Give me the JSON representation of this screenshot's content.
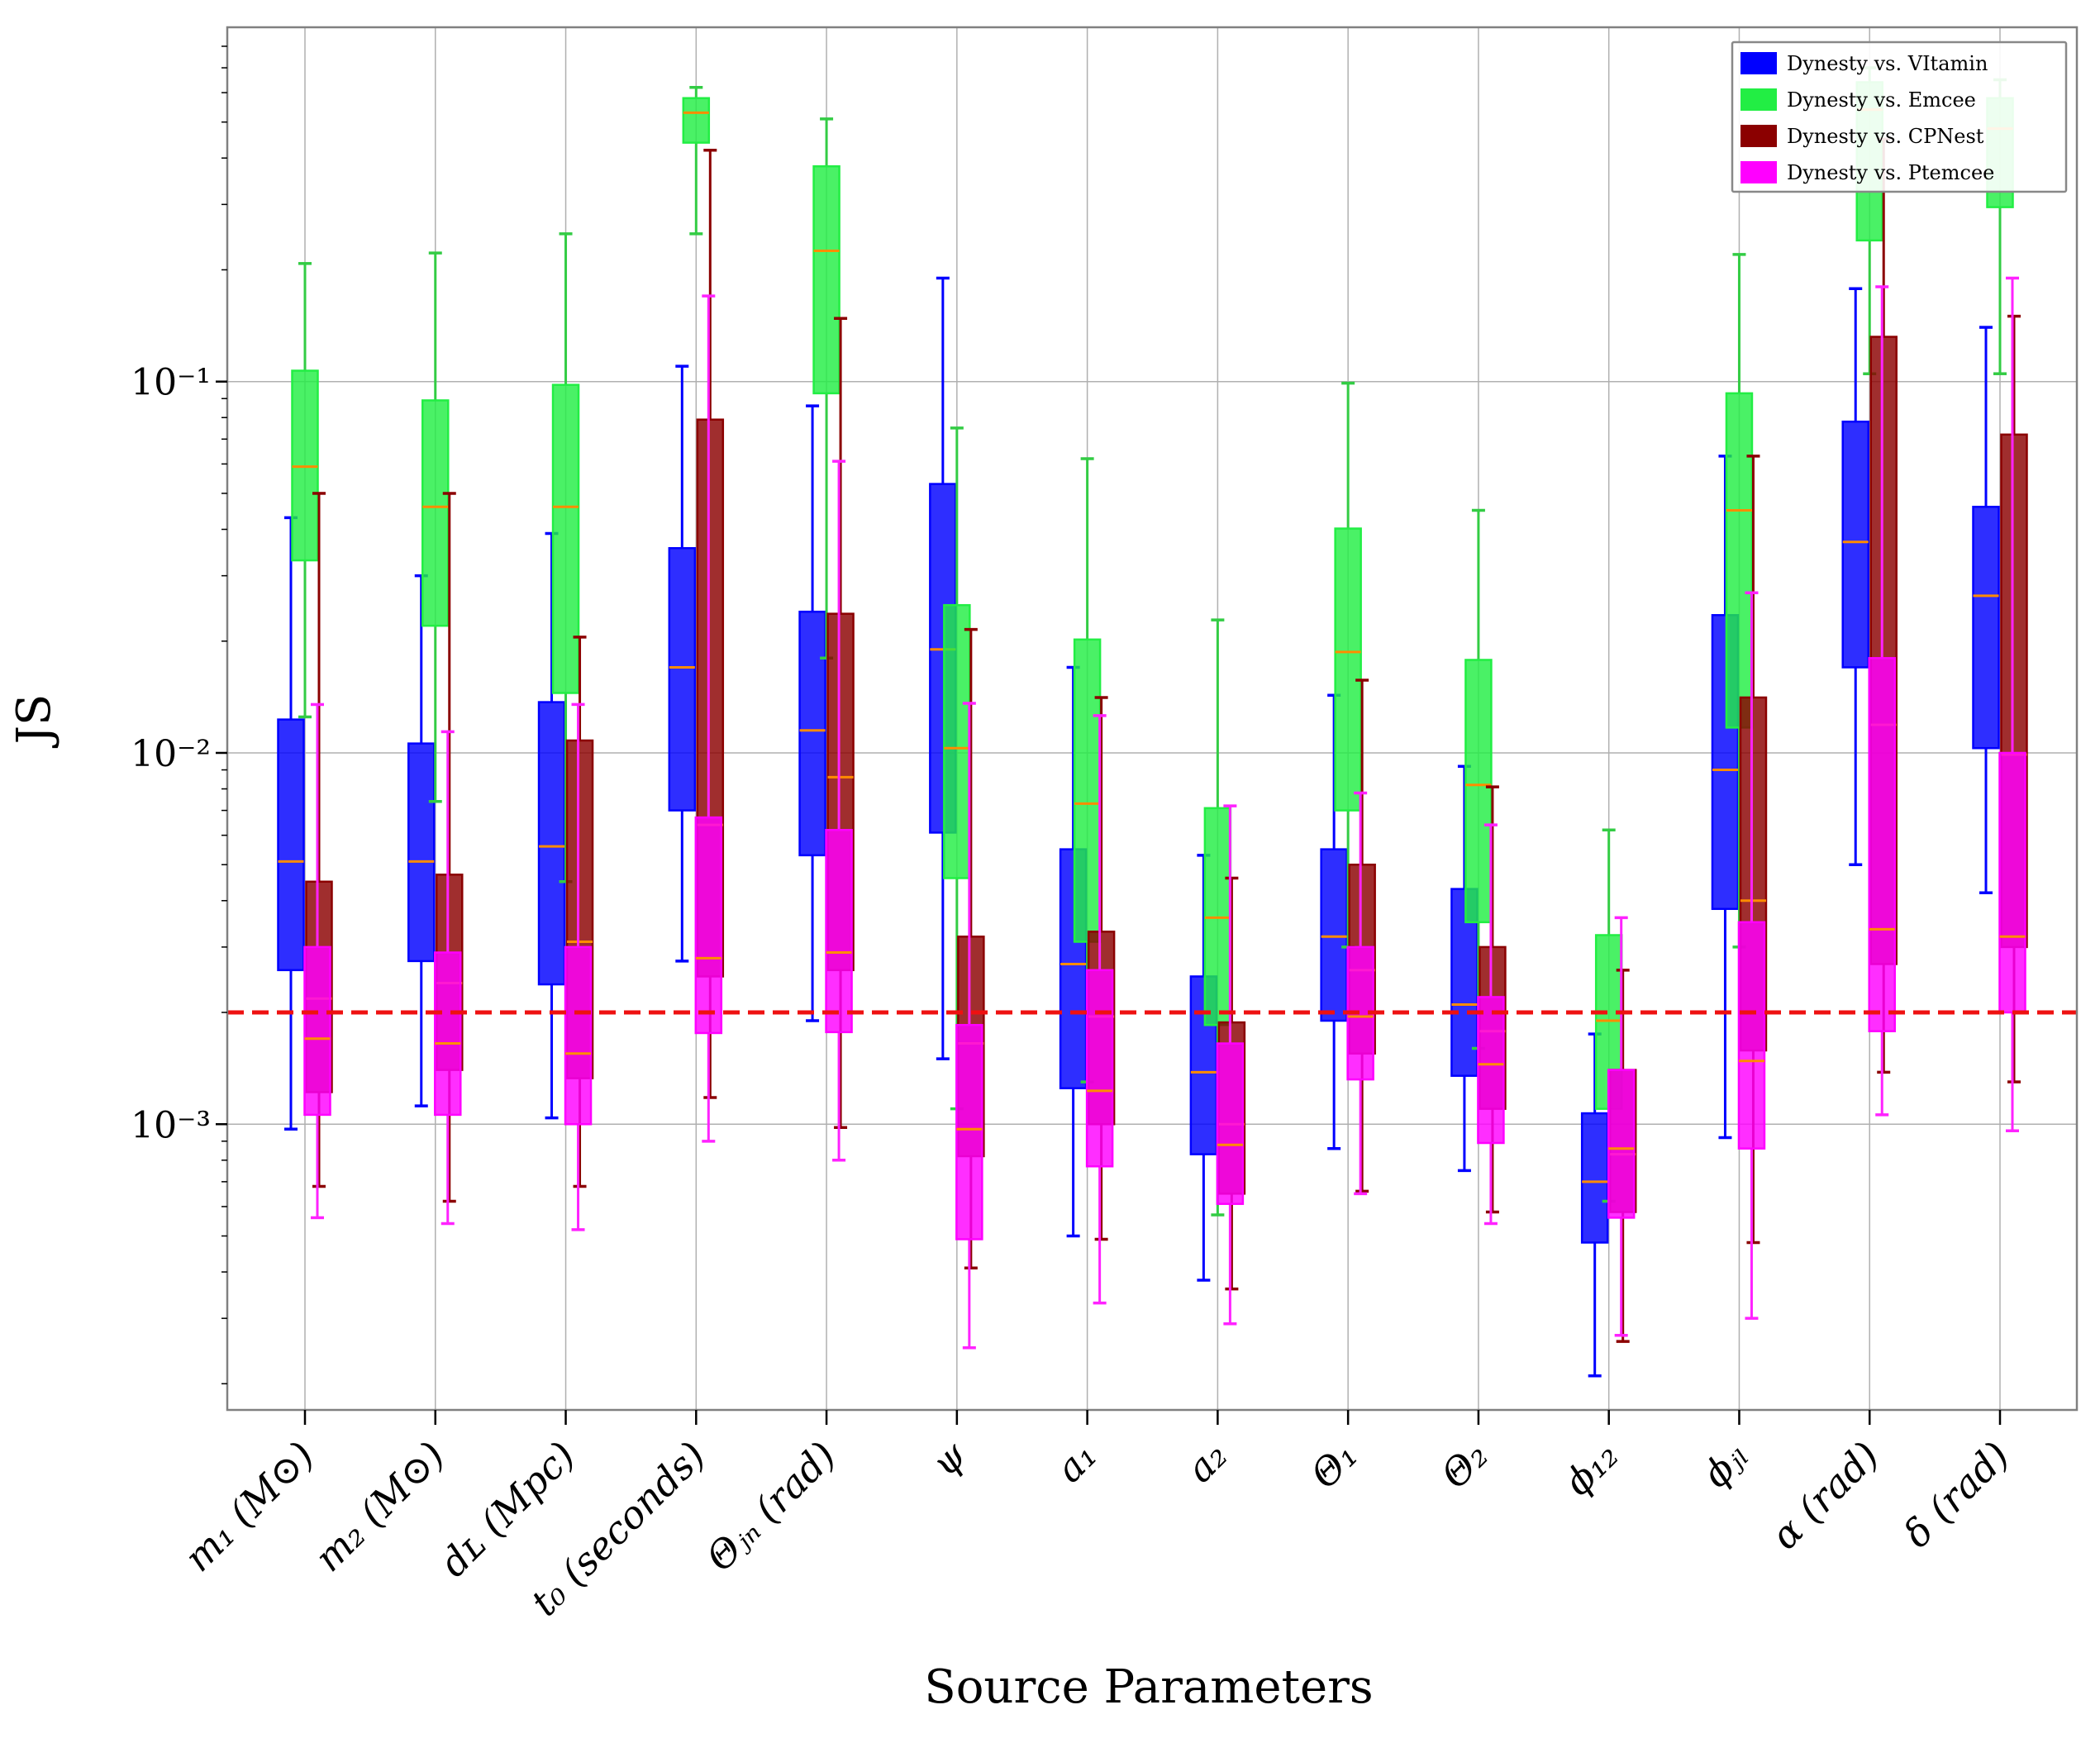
{
  "chart_data": {
    "type": "boxplot",
    "title": "",
    "xlabel": "Source Parameters",
    "ylabel": "JS",
    "yscale": "log",
    "ylim": [
      0.00017,
      0.9
    ],
    "ytick_values": [
      0.001,
      0.01,
      0.1
    ],
    "ytick_labels": [
      "10⁻³",
      "10⁻²",
      "10⁻¹"
    ],
    "grid": true,
    "legend_position": "top-right",
    "threshold": {
      "value": 0.002,
      "color": "#ee1111",
      "style": "dashed"
    },
    "categories": [
      "m₁ (M⊙)",
      "m₂ (M⊙)",
      "dʟ (Mpc)",
      "t₀ (seconds)",
      "Θⱼₙ (rad)",
      "ψ",
      "a₁",
      "a₂",
      "Θ₁",
      "Θ₂",
      "ϕ₁₂",
      "ϕⱼₗ",
      "α (rad)",
      "δ (rad)"
    ],
    "median_color": "#ff8c00",
    "series": [
      {
        "name": "Dynesty vs. VItamin",
        "color": "#0000ff",
        "whisker_color": "#0000ff",
        "boxes": [
          {
            "whislo": 0.00097,
            "q1": 0.0026,
            "med": 0.0051,
            "q3": 0.0123,
            "whishi": 0.043
          },
          {
            "whislo": 0.00112,
            "q1": 0.00275,
            "med": 0.0051,
            "q3": 0.0106,
            "whishi": 0.03
          },
          {
            "whislo": 0.00104,
            "q1": 0.00238,
            "med": 0.0056,
            "q3": 0.0137,
            "whishi": 0.039
          },
          {
            "whislo": 0.00275,
            "q1": 0.007,
            "med": 0.017,
            "q3": 0.0356,
            "whishi": 0.11
          },
          {
            "whislo": 0.0019,
            "q1": 0.0053,
            "med": 0.0115,
            "q3": 0.024,
            "whishi": 0.086
          },
          {
            "whislo": 0.0015,
            "q1": 0.0061,
            "med": 0.019,
            "q3": 0.053,
            "whishi": 0.19
          },
          {
            "whislo": 0.0005,
            "q1": 0.00125,
            "med": 0.0027,
            "q3": 0.0055,
            "whishi": 0.017
          },
          {
            "whislo": 0.00038,
            "q1": 0.00083,
            "med": 0.00138,
            "q3": 0.0025,
            "whishi": 0.0053
          },
          {
            "whislo": 0.00086,
            "q1": 0.0019,
            "med": 0.0032,
            "q3": 0.0055,
            "whishi": 0.0143
          },
          {
            "whislo": 0.00075,
            "q1": 0.00135,
            "med": 0.0021,
            "q3": 0.0043,
            "whishi": 0.0092
          },
          {
            "whislo": 0.00021,
            "q1": 0.00048,
            "med": 0.0007,
            "q3": 0.00107,
            "whishi": 0.00175
          },
          {
            "whislo": 0.00092,
            "q1": 0.0038,
            "med": 0.009,
            "q3": 0.0235,
            "whishi": 0.063
          },
          {
            "whislo": 0.005,
            "q1": 0.017,
            "med": 0.037,
            "q3": 0.078,
            "whishi": 0.178
          },
          {
            "whislo": 0.0042,
            "q1": 0.0103,
            "med": 0.0265,
            "q3": 0.046,
            "whishi": 0.14
          }
        ]
      },
      {
        "name": "Dynesty vs. Emcee",
        "color": "#22ee44",
        "whisker_color": "#33cc44",
        "boxes": [
          {
            "whislo": 0.0125,
            "q1": 0.033,
            "med": 0.059,
            "q3": 0.107,
            "whishi": 0.208
          },
          {
            "whislo": 0.0074,
            "q1": 0.022,
            "med": 0.046,
            "q3": 0.089,
            "whishi": 0.222
          },
          {
            "whislo": 0.0045,
            "q1": 0.0145,
            "med": 0.046,
            "q3": 0.098,
            "whishi": 0.25
          },
          {
            "whislo": 0.25,
            "q1": 0.44,
            "med": 0.53,
            "q3": 0.58,
            "whishi": 0.62
          },
          {
            "whislo": 0.018,
            "q1": 0.093,
            "med": 0.225,
            "q3": 0.38,
            "whishi": 0.51
          },
          {
            "whislo": 0.0011,
            "q1": 0.0046,
            "med": 0.0103,
            "q3": 0.025,
            "whishi": 0.075
          },
          {
            "whislo": 0.0013,
            "q1": 0.0031,
            "med": 0.0073,
            "q3": 0.0202,
            "whishi": 0.062
          },
          {
            "whislo": 0.00057,
            "q1": 0.00185,
            "med": 0.0036,
            "q3": 0.0071,
            "whishi": 0.0228
          },
          {
            "whislo": 0.003,
            "q1": 0.007,
            "med": 0.0187,
            "q3": 0.0402,
            "whishi": 0.099
          },
          {
            "whislo": 0.0016,
            "q1": 0.0035,
            "med": 0.0082,
            "q3": 0.0178,
            "whishi": 0.045
          },
          {
            "whislo": 0.00062,
            "q1": 0.0011,
            "med": 0.0019,
            "q3": 0.00323,
            "whishi": 0.0062
          },
          {
            "whislo": 0.003,
            "q1": 0.0117,
            "med": 0.045,
            "q3": 0.093,
            "whishi": 0.22
          },
          {
            "whislo": 0.105,
            "q1": 0.24,
            "med": 0.54,
            "q3": 0.64,
            "whishi": 0.7
          },
          {
            "whislo": 0.105,
            "q1": 0.295,
            "med": 0.48,
            "q3": 0.58,
            "whishi": 0.65
          }
        ]
      },
      {
        "name": "Dynesty vs. CPNest",
        "color": "#8b0000",
        "whisker_color": "#8b0000",
        "boxes": [
          {
            "whislo": 0.00068,
            "q1": 0.00122,
            "med": 0.00218,
            "q3": 0.0045,
            "whishi": 0.05
          },
          {
            "whislo": 0.00062,
            "q1": 0.0014,
            "med": 0.0024,
            "q3": 0.0047,
            "whishi": 0.05
          },
          {
            "whislo": 0.00068,
            "q1": 0.00133,
            "med": 0.0031,
            "q3": 0.0108,
            "whishi": 0.0205
          },
          {
            "whislo": 0.00118,
            "q1": 0.0025,
            "med": 0.0064,
            "q3": 0.079,
            "whishi": 0.42
          },
          {
            "whislo": 0.00098,
            "q1": 0.0026,
            "med": 0.0086,
            "q3": 0.0237,
            "whishi": 0.148
          },
          {
            "whislo": 0.00041,
            "q1": 0.00082,
            "med": 0.00165,
            "q3": 0.0032,
            "whishi": 0.0215
          },
          {
            "whislo": 0.00049,
            "q1": 0.001,
            "med": 0.00195,
            "q3": 0.0033,
            "whishi": 0.0141
          },
          {
            "whislo": 0.00036,
            "q1": 0.00065,
            "med": 0.001,
            "q3": 0.00188,
            "whishi": 0.0046
          },
          {
            "whislo": 0.00066,
            "q1": 0.00155,
            "med": 0.0026,
            "q3": 0.005,
            "whishi": 0.0157
          },
          {
            "whislo": 0.00058,
            "q1": 0.0011,
            "med": 0.00178,
            "q3": 0.003,
            "whishi": 0.0081
          },
          {
            "whislo": 0.00026,
            "q1": 0.00058,
            "med": 0.00083,
            "q3": 0.0014,
            "whishi": 0.0026
          },
          {
            "whislo": 0.00048,
            "q1": 0.00158,
            "med": 0.004,
            "q3": 0.0141,
            "whishi": 0.063
          },
          {
            "whislo": 0.00138,
            "q1": 0.0027,
            "med": 0.0119,
            "q3": 0.132,
            "whishi": 0.45
          },
          {
            "whislo": 0.0013,
            "q1": 0.003,
            "med": 0.0099,
            "q3": 0.072,
            "whishi": 0.15
          }
        ]
      },
      {
        "name": "Dynesty vs. Ptemcee",
        "color": "#ff00ff",
        "whisker_color": "#ff22ff",
        "boxes": [
          {
            "whislo": 0.00056,
            "q1": 0.00106,
            "med": 0.0017,
            "q3": 0.003,
            "whishi": 0.0135
          },
          {
            "whislo": 0.00054,
            "q1": 0.00106,
            "med": 0.00165,
            "q3": 0.0029,
            "whishi": 0.0114
          },
          {
            "whislo": 0.00052,
            "q1": 0.001,
            "med": 0.00155,
            "q3": 0.003,
            "whishi": 0.0135
          },
          {
            "whislo": 0.0009,
            "q1": 0.00176,
            "med": 0.0028,
            "q3": 0.0067,
            "whishi": 0.17
          },
          {
            "whislo": 0.0008,
            "q1": 0.00177,
            "med": 0.0029,
            "q3": 0.0062,
            "whishi": 0.061
          },
          {
            "whislo": 0.00025,
            "q1": 0.00049,
            "med": 0.00097,
            "q3": 0.00185,
            "whishi": 0.0136
          },
          {
            "whislo": 0.00033,
            "q1": 0.00077,
            "med": 0.00123,
            "q3": 0.0026,
            "whishi": 0.0126
          },
          {
            "whislo": 0.00029,
            "q1": 0.00061,
            "med": 0.00088,
            "q3": 0.00165,
            "whishi": 0.0072
          },
          {
            "whislo": 0.00065,
            "q1": 0.00132,
            "med": 0.00195,
            "q3": 0.003,
            "whishi": 0.0078
          },
          {
            "whislo": 0.00054,
            "q1": 0.00089,
            "med": 0.00145,
            "q3": 0.0022,
            "whishi": 0.0064
          },
          {
            "whislo": 0.00027,
            "q1": 0.00056,
            "med": 0.00086,
            "q3": 0.0014,
            "whishi": 0.0036
          },
          {
            "whislo": 0.0003,
            "q1": 0.00086,
            "med": 0.00148,
            "q3": 0.0035,
            "whishi": 0.027
          },
          {
            "whislo": 0.00106,
            "q1": 0.00178,
            "med": 0.00335,
            "q3": 0.018,
            "whishi": 0.18
          },
          {
            "whislo": 0.00096,
            "q1": 0.002,
            "med": 0.0032,
            "q3": 0.01,
            "whishi": 0.19
          }
        ]
      }
    ]
  }
}
